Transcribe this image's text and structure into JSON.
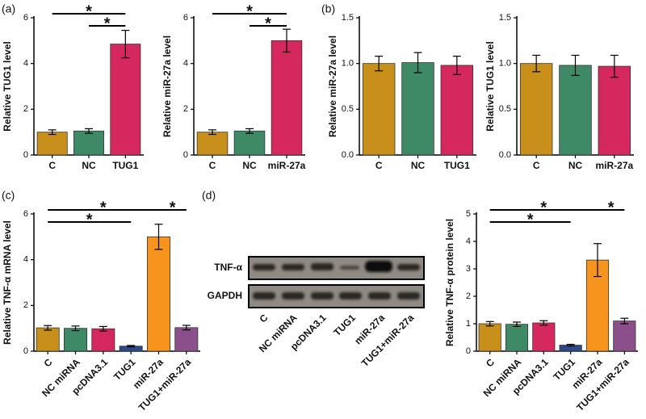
{
  "chart_data": [
    {
      "type": "bar",
      "panel": "(a)",
      "ylabel": "Relative TUG1 level",
      "categories": [
        "C",
        "NC",
        "TUG1"
      ],
      "values": [
        1.0,
        1.05,
        4.85
      ],
      "errors": [
        0.1,
        0.1,
        0.6
      ],
      "colors": [
        "#c8901a",
        "#3e8a67",
        "#d4285e"
      ],
      "ylim": [
        0,
        6
      ],
      "yticks": [
        0,
        2,
        4,
        6
      ],
      "annotations": [
        {
          "text": "*",
          "from": "C",
          "to": "TUG1"
        },
        {
          "text": "*",
          "from": "NC",
          "to": "TUG1"
        }
      ]
    },
    {
      "type": "bar",
      "ylabel": "Relative miR-27a level",
      "categories": [
        "C",
        "NC",
        "miR-27a"
      ],
      "values": [
        1.0,
        1.05,
        5.0
      ],
      "errors": [
        0.1,
        0.1,
        0.5
      ],
      "colors": [
        "#c8901a",
        "#3e8a67",
        "#d4285e"
      ],
      "ylim": [
        0,
        6
      ],
      "yticks": [
        0,
        2,
        4,
        6
      ],
      "annotations": [
        {
          "text": "*",
          "from": "C",
          "to": "miR-27a"
        },
        {
          "text": "*",
          "from": "NC",
          "to": "miR-27a"
        }
      ]
    },
    {
      "type": "bar",
      "panel": "(b)",
      "ylabel": "Relative miR-27a level",
      "categories": [
        "C",
        "NC",
        "TUG1"
      ],
      "values": [
        1.0,
        1.01,
        0.98
      ],
      "errors": [
        0.08,
        0.11,
        0.1
      ],
      "colors": [
        "#c8901a",
        "#3e8a67",
        "#d4285e"
      ],
      "ylim": [
        0,
        1.5
      ],
      "yticks": [
        {
          "value": 0,
          "label": "0.0"
        },
        0.5,
        {
          "value": 1,
          "label": "1.0"
        },
        1.5
      ],
      "annotations": []
    },
    {
      "type": "bar",
      "ylabel": "Relative TUG1 level",
      "categories": [
        "C",
        "NC",
        "miR-27a"
      ],
      "values": [
        1.0,
        0.98,
        0.97
      ],
      "errors": [
        0.09,
        0.11,
        0.12
      ],
      "colors": [
        "#c8901a",
        "#3e8a67",
        "#d4285e"
      ],
      "ylim": [
        0,
        1.5
      ],
      "yticks": [
        {
          "value": 0,
          "label": "0.0"
        },
        0.5,
        {
          "value": 1,
          "label": "1.0"
        },
        1.5
      ],
      "annotations": []
    },
    {
      "type": "bar",
      "panel": "(c)",
      "ylabel": "Relative TNF-α mRNA level",
      "categories": [
        "C",
        "NC miRNA",
        "pcDNA3.1",
        "TUG1",
        "miR-27a",
        "TUG1+miR-27a"
      ],
      "values": [
        1.02,
        1.0,
        0.98,
        0.22,
        5.0,
        1.03
      ],
      "errors": [
        0.1,
        0.1,
        0.1,
        0.03,
        0.55,
        0.1
      ],
      "colors": [
        "#c8901a",
        "#3e8a67",
        "#d4285e",
        "#2a4a8c",
        "#f7941d",
        "#8b4f8c"
      ],
      "ylim": [
        0,
        6
      ],
      "yticks": [
        0,
        2,
        4,
        6
      ],
      "annotations": [
        {
          "text": "*",
          "from": "C",
          "to": "miR-27a"
        },
        {
          "text": "*",
          "from": "miR-27a",
          "to": "TUG1+miR-27a"
        },
        {
          "text": "*",
          "from": "C",
          "to": "TUG1"
        }
      ]
    },
    {
      "type": "bar",
      "ylabel": "Relative TNF-α protein level",
      "categories": [
        "C",
        "NC miRNA",
        "pcDNA3.1",
        "TUG1",
        "miR-27a",
        "TUG1+miR-27a"
      ],
      "values": [
        1.0,
        0.98,
        1.03,
        0.22,
        3.32,
        1.1
      ],
      "errors": [
        0.08,
        0.08,
        0.08,
        0.03,
        0.6,
        0.1
      ],
      "colors": [
        "#c8901a",
        "#3e8a67",
        "#d4285e",
        "#2a4a8c",
        "#f7941d",
        "#8b4f8c"
      ],
      "ylim": [
        0,
        5
      ],
      "yticks": [
        0,
        1,
        2,
        3,
        4,
        5
      ],
      "annotations": [
        {
          "text": "*",
          "from": "C",
          "to": "miR-27a"
        },
        {
          "text": "*",
          "from": "miR-27a",
          "to": "TUG1+miR-27a"
        },
        {
          "text": "*",
          "from": "C",
          "to": "TUG1"
        }
      ]
    }
  ],
  "blot": {
    "panel": "(d)",
    "rows": [
      "TNF-α",
      "GAPDH"
    ],
    "lanes": [
      "C",
      "NC miRNA",
      "pcDNA3.1",
      "TUG1",
      "miR-27a",
      "TUG1+miR-27a"
    ]
  }
}
